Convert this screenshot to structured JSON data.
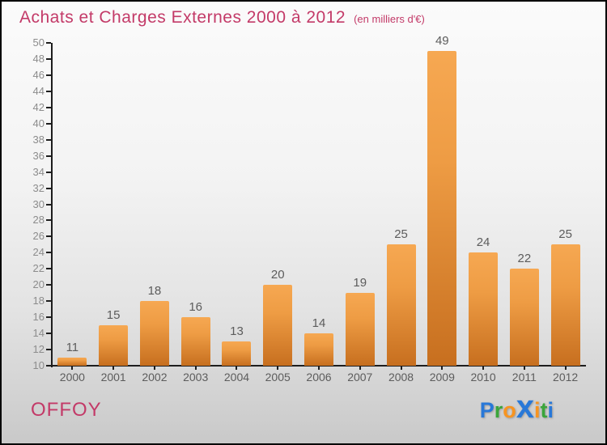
{
  "page": {
    "title": "Achats et Charges Externes 2000 à 2012",
    "subtitle": "(en milliers d'€)",
    "title_color": "#c33a68"
  },
  "footer": {
    "company": "OFFOY",
    "company_color": "#c33a68",
    "logo": {
      "name": "Proxiti",
      "letters": [
        {
          "char": "P",
          "color": "#2878d8",
          "big": false
        },
        {
          "char": "r",
          "color": "#3ba53b",
          "big": false
        },
        {
          "char": "o",
          "color": "#f79420",
          "big": false
        },
        {
          "char": "x",
          "color": "#2878d8",
          "big": true
        },
        {
          "char": "i",
          "color": "#f79420",
          "big": false
        },
        {
          "char": "t",
          "color": "#3ba53b",
          "big": false
        },
        {
          "char": "i",
          "color": "#2878d8",
          "big": false
        }
      ]
    }
  },
  "chart_data": {
    "type": "bar",
    "title": "Achats et Charges Externes 2000 à 2012",
    "subtitle": "(en milliers d'€)",
    "categories": [
      "2000",
      "2001",
      "2002",
      "2003",
      "2004",
      "2005",
      "2006",
      "2007",
      "2008",
      "2009",
      "2010",
      "2011",
      "2012"
    ],
    "values": [
      11,
      15,
      18,
      16,
      13,
      20,
      14,
      19,
      25,
      49,
      24,
      22,
      25
    ],
    "xlabel": "",
    "ylabel": "",
    "ylim": [
      10,
      50
    ],
    "ytick_step": 2,
    "grid": false,
    "legend": "none",
    "bar_color_top": "#f6a852",
    "bar_color_bottom": "#c76f1f",
    "value_label_color": "#5c5c5c",
    "tick_label_color": "#8c8c8c",
    "axis_color": "#1d1d1d"
  }
}
